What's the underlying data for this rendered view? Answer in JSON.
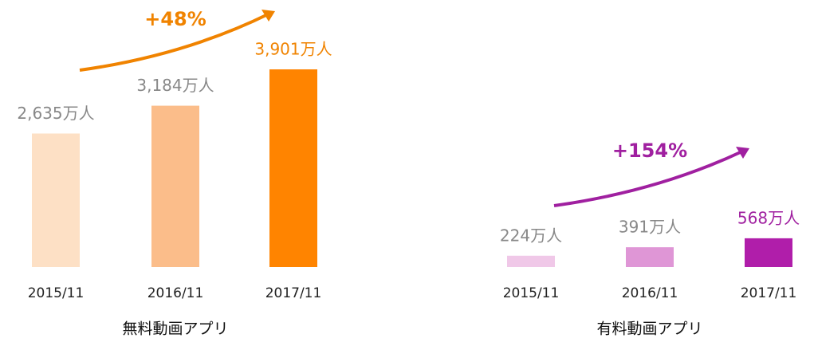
{
  "chart_data": [
    {
      "type": "bar",
      "title": "無料動画アプリ",
      "annotation": "+48%",
      "annotation_color": "#f08300",
      "categories": [
        "2015/11",
        "2016/11",
        "2017/11"
      ],
      "values": [
        2635,
        3184,
        3901
      ],
      "value_labels": [
        "2,635万人",
        "3,184万人",
        "3,901万人"
      ],
      "colors": [
        "#fde0c5",
        "#fbbd8a",
        "#ff8400"
      ],
      "value_label_colors": [
        "#888888",
        "#888888",
        "#f08300"
      ]
    },
    {
      "type": "bar",
      "title": "有料動画アプリ",
      "annotation": "+154%",
      "annotation_color": "#a020a0",
      "categories": [
        "2015/11",
        "2016/11",
        "2017/11"
      ],
      "values": [
        224,
        391,
        568
      ],
      "value_labels": [
        "224万人",
        "391万人",
        "568万人"
      ],
      "colors": [
        "#f0c8e8",
        "#df96d6",
        "#b01eaa"
      ],
      "value_label_colors": [
        "#888888",
        "#888888",
        "#a020a0"
      ]
    }
  ]
}
